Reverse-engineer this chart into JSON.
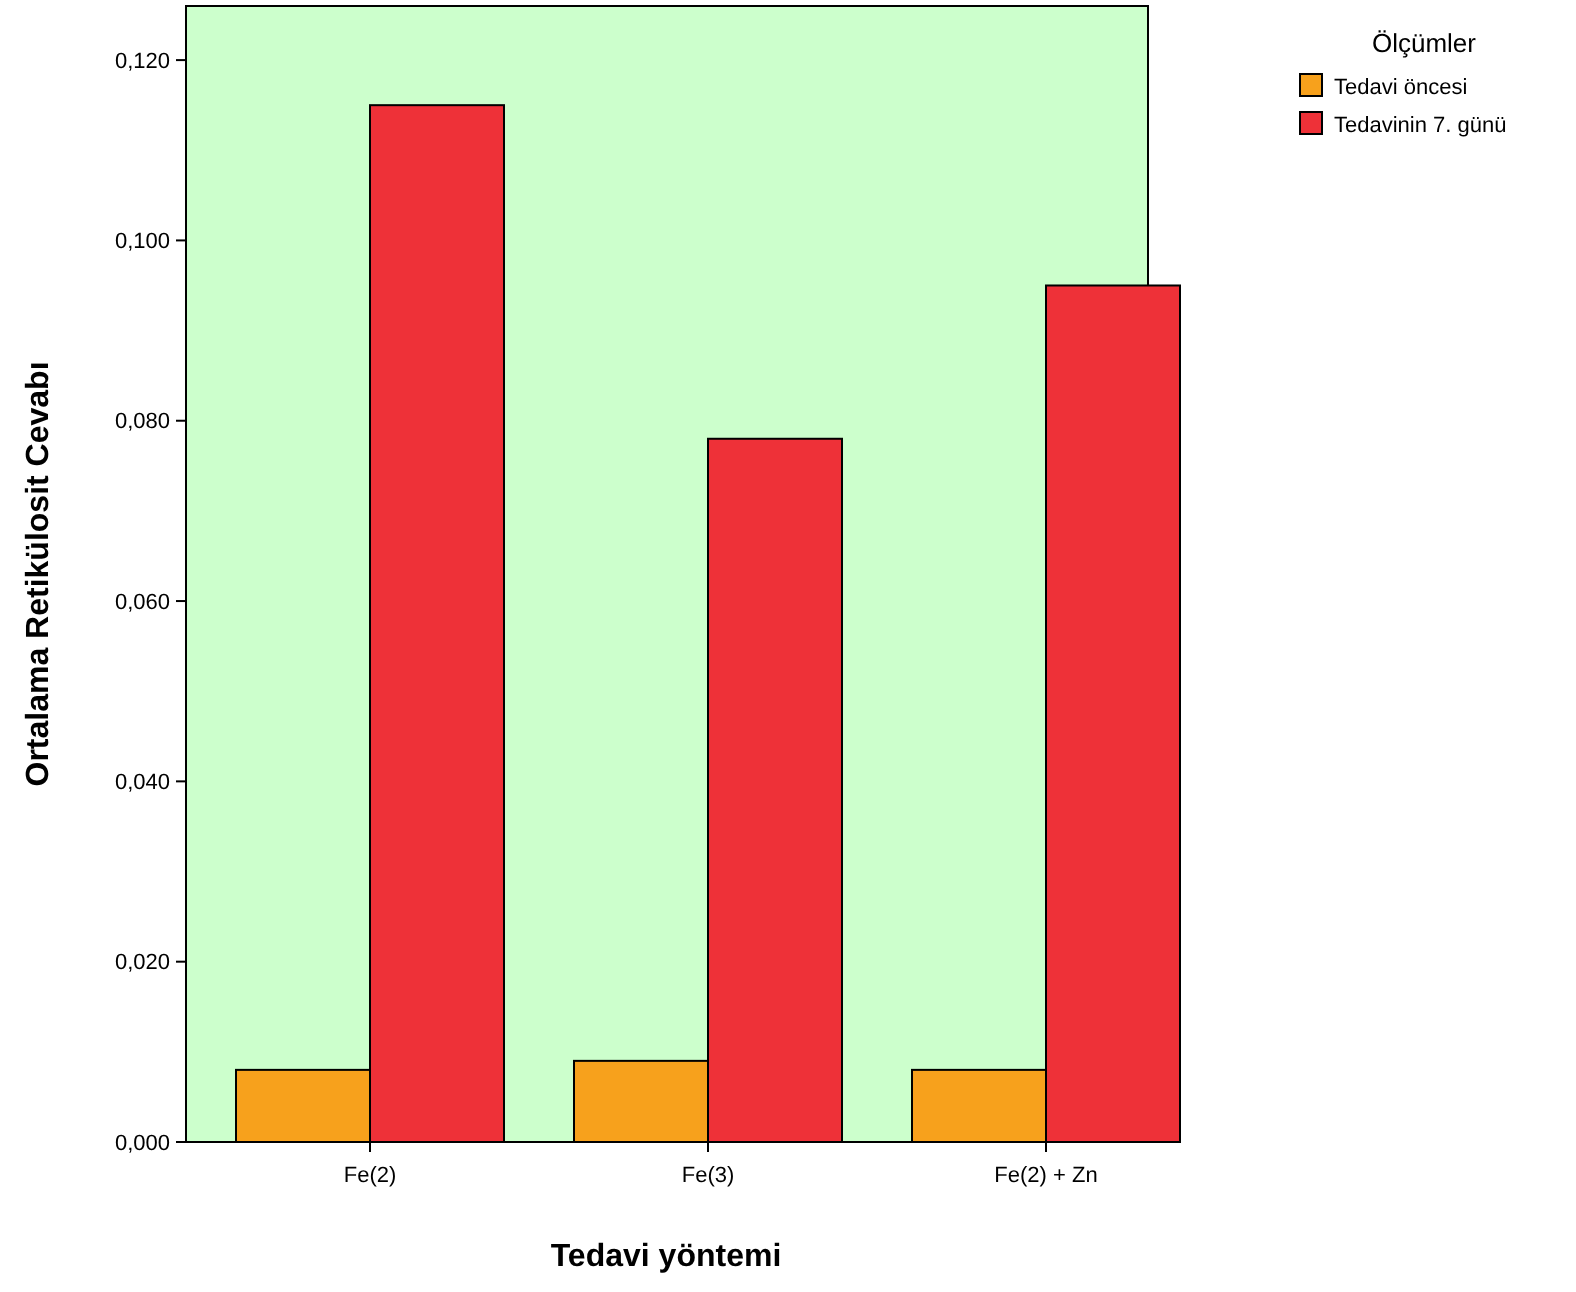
{
  "chart_data": {
    "type": "bar",
    "xlabel": "Tedavi yöntemi",
    "ylabel": "Ortalama Retikülosit Cevabı",
    "legend_title": "Ölçümler",
    "legend": "top right",
    "categories": [
      "Fe(2)",
      "Fe(3)",
      "Fe(2) + Zn"
    ],
    "series": [
      {
        "name": "Tedavi öncesi",
        "color": "#f7a11c",
        "values": [
          0.008,
          0.009,
          0.008
        ]
      },
      {
        "name": "Tedavinin 7. günü",
        "color": "#ee3138",
        "values": [
          0.115,
          0.078,
          0.095
        ]
      }
    ],
    "ylim": [
      0,
      0.126
    ],
    "yticks": [
      {
        "value": 0,
        "label": "0,000"
      },
      {
        "value": 0.02,
        "label": "0,020"
      },
      {
        "value": 0.04,
        "label": "0,040"
      },
      {
        "value": 0.06,
        "label": "0,060"
      },
      {
        "value": 0.08,
        "label": "0,080"
      },
      {
        "value": 0.1,
        "label": "0,100"
      },
      {
        "value": 0.12,
        "label": "0,120"
      }
    ],
    "grid": false
  }
}
